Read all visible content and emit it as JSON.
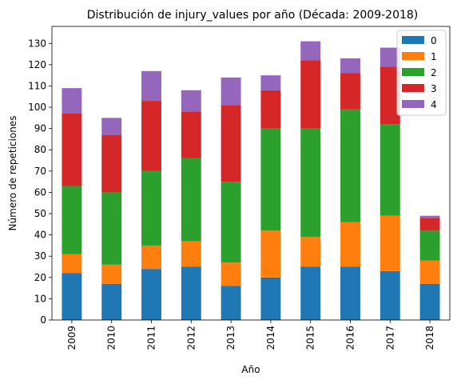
{
  "chart_data": {
    "type": "bar",
    "stacked": true,
    "title": "Distribución de injury_values por año (Década: 2009-2018)",
    "xlabel": "Año",
    "ylabel": "Número de repeticiones",
    "ylim": [
      0,
      138
    ],
    "yticks": [
      0,
      10,
      20,
      30,
      40,
      50,
      60,
      70,
      80,
      90,
      100,
      110,
      120,
      130
    ],
    "categories": [
      "2009",
      "2010",
      "2011",
      "2012",
      "2013",
      "2014",
      "2015",
      "2016",
      "2017",
      "2018"
    ],
    "series": [
      {
        "name": "0",
        "color": "#1f77b4",
        "values": [
          22,
          17,
          24,
          25,
          16,
          20,
          25,
          25,
          23,
          17
        ]
      },
      {
        "name": "1",
        "color": "#ff7f0e",
        "values": [
          9,
          9,
          11,
          12,
          11,
          22,
          14,
          21,
          26,
          11
        ]
      },
      {
        "name": "2",
        "color": "#2ca02c",
        "values": [
          32,
          34,
          35,
          39,
          38,
          48,
          51,
          53,
          43,
          14
        ]
      },
      {
        "name": "3",
        "color": "#d62728",
        "values": [
          34,
          27,
          33,
          22,
          36,
          18,
          32,
          17,
          27,
          6
        ]
      },
      {
        "name": "4",
        "color": "#9467bd",
        "values": [
          12,
          8,
          14,
          10,
          13,
          7,
          9,
          7,
          9,
          1
        ]
      }
    ],
    "legend": "top-right",
    "grid": false
  }
}
